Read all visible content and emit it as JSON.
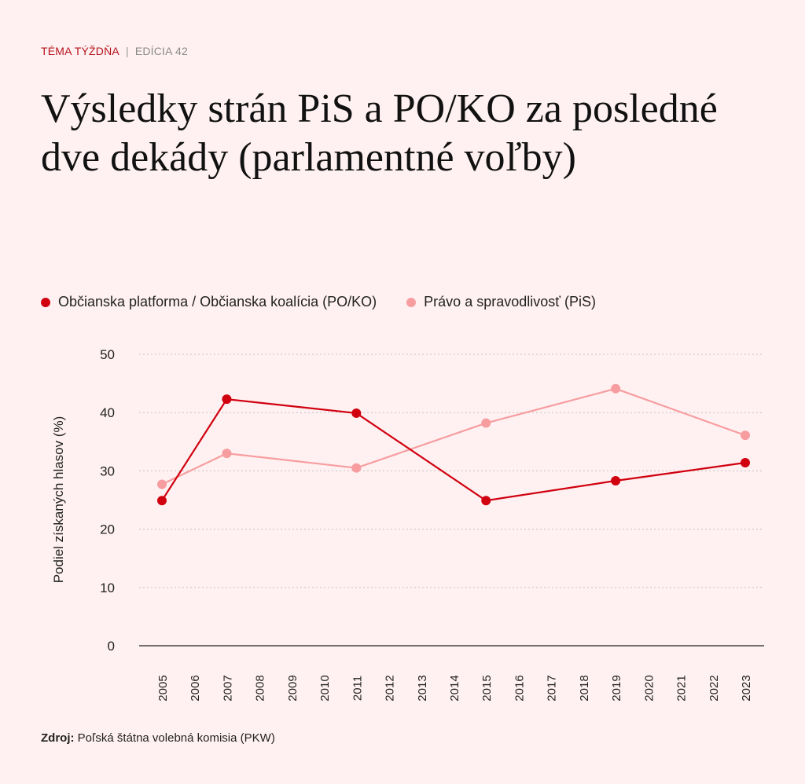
{
  "header": {
    "kicker": "TÉMA TÝŽDŇA",
    "separator": "|",
    "edition": "EDÍCIA 42"
  },
  "title": "Výsledky strán PiS a PO/KO za posledné dve dekády (parlamentné voľby)",
  "source": {
    "label": "Zdroj:",
    "text": "Poľská štátna volebná komisia (PKW)"
  },
  "chart_data": {
    "type": "line",
    "title": "Výsledky strán PiS a PO/KO za posledné dve dekády (parlamentné voľby)",
    "xlabel": "",
    "ylabel": "Podiel získaných hlasov (%)",
    "ylim": [
      0,
      50
    ],
    "yticks": [
      "0",
      "10",
      "20",
      "30",
      "40",
      "50"
    ],
    "xlim": [
      2005,
      2023
    ],
    "xticks": [
      "2005",
      "2006",
      "2007",
      "2008",
      "2009",
      "2010",
      "2011",
      "2012",
      "2013",
      "2014",
      "2015",
      "2016",
      "2017",
      "2018",
      "2019",
      "2020",
      "2021",
      "2022",
      "2023"
    ],
    "grid": "horizontal dotted",
    "legend_position": "top-left",
    "series": [
      {
        "name": "Občianska platforma / Občianska koalícia (PO/KO)",
        "color": "#d0000f",
        "x": [
          2005,
          2007,
          2011,
          2015,
          2019,
          2023
        ],
        "values": [
          24.9,
          42.3,
          39.9,
          24.9,
          28.3,
          31.4
        ]
      },
      {
        "name": "Právo a spravodlivosť (PiS)",
        "color": "#f79da0",
        "x": [
          2005,
          2007,
          2011,
          2015,
          2019,
          2023
        ],
        "values": [
          27.7,
          33.0,
          30.5,
          38.2,
          44.1,
          36.1
        ]
      }
    ]
  }
}
